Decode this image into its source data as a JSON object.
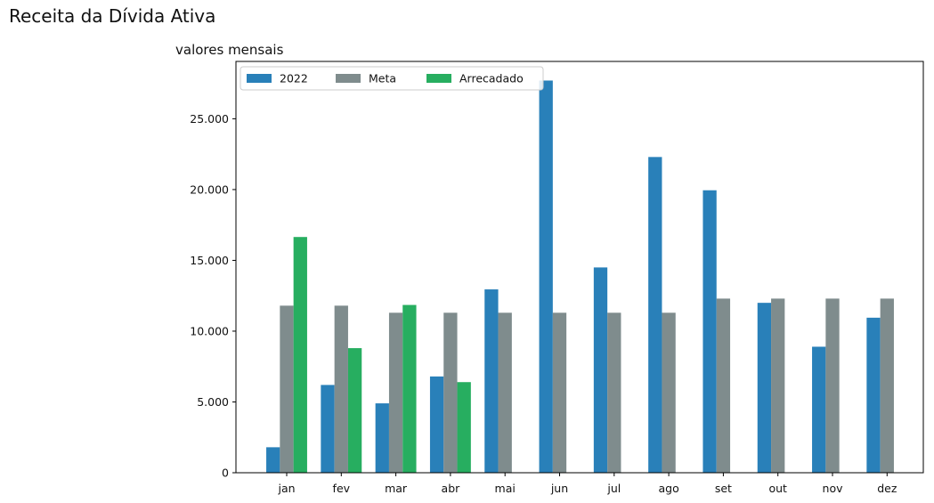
{
  "figure_title": "Receita da Dívida Ativa",
  "chart_data": {
    "type": "bar",
    "title": "valores mensais",
    "xlabel": "",
    "ylabel": "",
    "categories": [
      "jan",
      "fev",
      "mar",
      "abr",
      "mai",
      "jun",
      "jul",
      "ago",
      "set",
      "out",
      "nov",
      "dez"
    ],
    "series": [
      {
        "name": "2022",
        "color": "#2980b9",
        "values": [
          1800,
          6200,
          4900,
          6800,
          12950,
          27700,
          14500,
          22300,
          19950,
          12000,
          8900,
          10950
        ]
      },
      {
        "name": "Meta",
        "color": "#7f8c8d",
        "values": [
          11800,
          11800,
          11300,
          11300,
          11300,
          11300,
          11300,
          11300,
          12300,
          12300,
          12300,
          12300
        ]
      },
      {
        "name": "Arrecadado",
        "color": "#27ae60",
        "values": [
          16650,
          8800,
          11850,
          6400,
          null,
          null,
          null,
          null,
          null,
          null,
          null,
          null
        ]
      }
    ],
    "ylim": [
      0,
      29050
    ],
    "yticks": [
      0,
      5000,
      10000,
      15000,
      20000,
      25000
    ],
    "ytick_labels": [
      "0",
      "5.000",
      "10.000",
      "15.000",
      "20.000",
      "25.000"
    ],
    "grid": false,
    "legend_position": "upper-left"
  }
}
